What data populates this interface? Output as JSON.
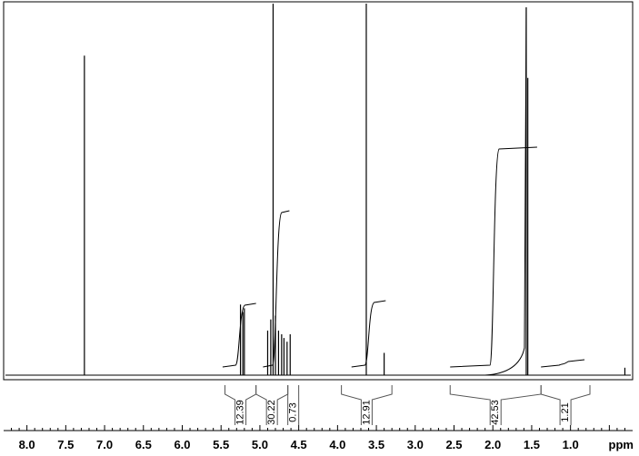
{
  "chart_data": {
    "type": "line",
    "title": "",
    "xlabel": "ppm",
    "ylabel": "",
    "xlim": [
      8.3,
      0.2
    ],
    "x_reversed": true,
    "grid": false,
    "axis_tick_labels": [
      "8.0",
      "7.5",
      "7.0",
      "6.5",
      "6.0",
      "5.5",
      "5.0",
      "4.5",
      "4.0",
      "3.5",
      "3.0",
      "2.5",
      "2.0",
      "1.5",
      "1.0"
    ],
    "series": [
      {
        "peaks": [
          {
            "ppm": 7.26,
            "height": 0.86
          },
          {
            "ppm": 5.25,
            "height": 0.19
          },
          {
            "ppm": 5.22,
            "height": 0.17
          },
          {
            "ppm": 5.2,
            "height": 0.18
          },
          {
            "ppm": 4.9,
            "height": 0.12
          },
          {
            "ppm": 4.86,
            "height": 0.15
          },
          {
            "ppm": 4.83,
            "height": 1.0
          },
          {
            "ppm": 4.8,
            "height": 0.16
          },
          {
            "ppm": 4.76,
            "height": 0.12
          },
          {
            "ppm": 4.72,
            "height": 0.11
          },
          {
            "ppm": 4.69,
            "height": 0.1
          },
          {
            "ppm": 4.65,
            "height": 0.09
          },
          {
            "ppm": 4.61,
            "height": 0.11
          },
          {
            "ppm": 3.63,
            "height": 1.0
          },
          {
            "ppm": 3.4,
            "height": 0.06
          },
          {
            "ppm": 1.57,
            "height": 0.99
          },
          {
            "ppm": 1.55,
            "height": 0.8
          },
          {
            "ppm": 0.3,
            "height": 0.02
          }
        ]
      }
    ],
    "integrals": [
      {
        "from": 5.45,
        "to": 5.05,
        "value": "12.39"
      },
      {
        "from": 5.05,
        "to": 4.64,
        "value": "30.22"
      },
      {
        "from": 4.64,
        "to": 4.5,
        "value": "0.73"
      },
      {
        "from": 3.95,
        "to": 3.3,
        "value": "12.91"
      },
      {
        "from": 2.55,
        "to": 1.38,
        "value": "42.53"
      },
      {
        "from": 1.38,
        "to": 0.75,
        "value": "1.21"
      }
    ]
  }
}
